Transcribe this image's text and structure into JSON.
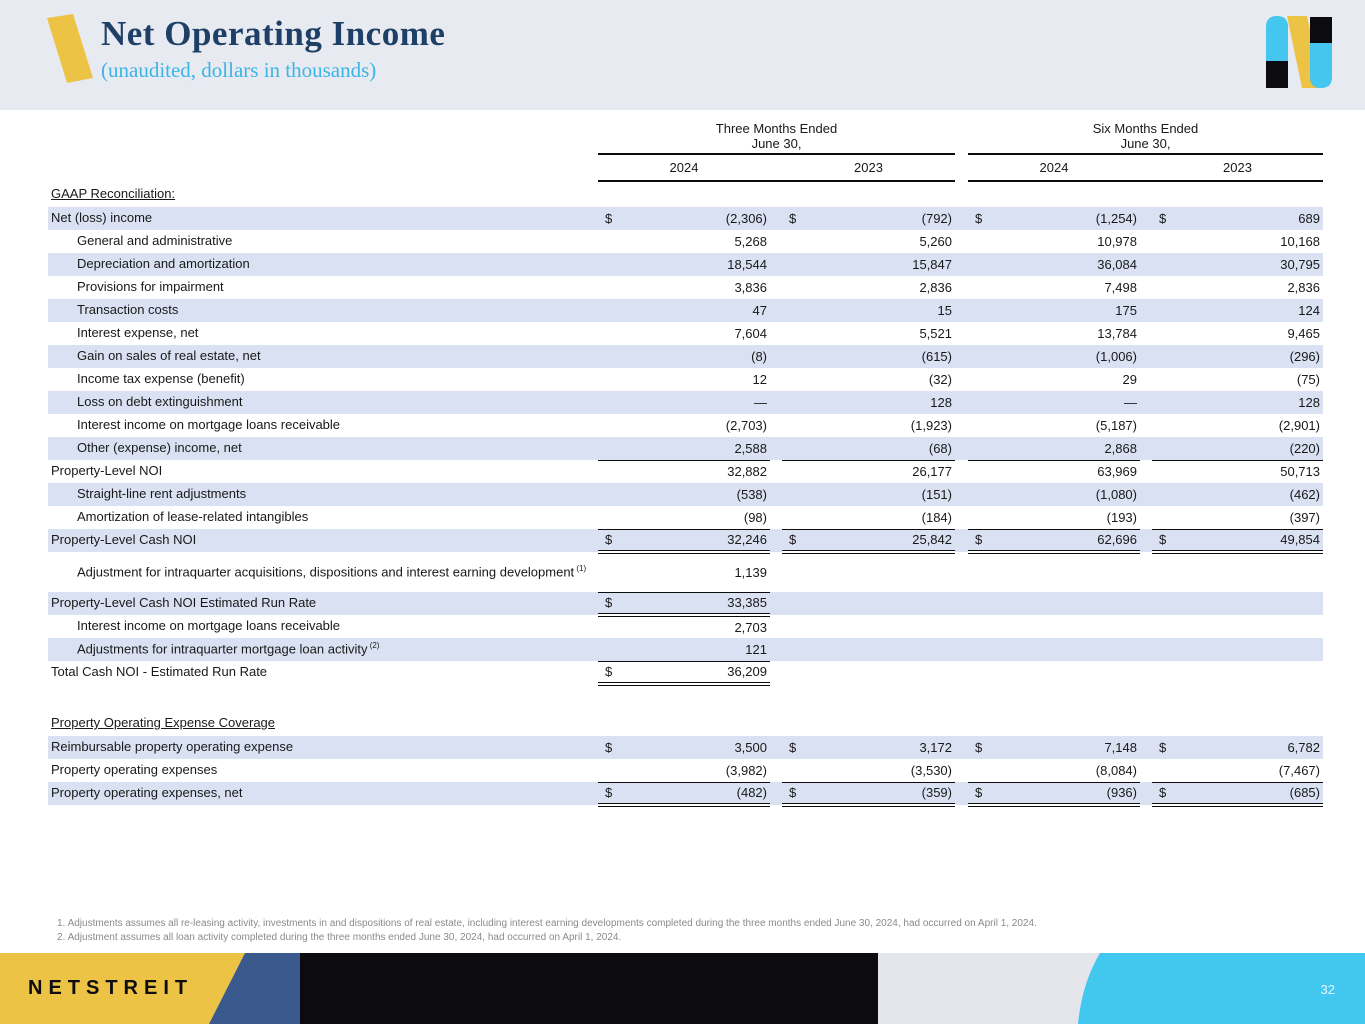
{
  "header": {
    "title": "Net Operating Income",
    "subtitle": "(unaudited, dollars in thousands)"
  },
  "colors": {
    "accent_yellow": "#ecc345",
    "title_navy": "#1f4066",
    "subtitle_blue": "#3ab5e5",
    "row_shade": "#d9e1f2",
    "header_band": "#e8eaf2",
    "footer_steel_blue": "#3a5a8e",
    "footer_black": "#0b0b10",
    "footer_gray": "#e4e6eb",
    "footer_cyan": "#42c7ef",
    "logo_cyan": "#45c6ee"
  },
  "table": {
    "groups": [
      {
        "line1": "Three Months Ended",
        "line2": "June 30,",
        "years": [
          "2024",
          "2023"
        ]
      },
      {
        "line1": "Six Months Ended",
        "line2": "June 30,",
        "years": [
          "2024",
          "2023"
        ]
      }
    ],
    "sections": [
      {
        "heading": "GAAP Reconciliation:",
        "rows": [
          {
            "label": "Net (loss) income",
            "indent": 0,
            "shade": true,
            "dollar": "all",
            "border": "none",
            "vals": [
              "(2,306)",
              "(792)",
              "(1,254)",
              "689"
            ]
          },
          {
            "label": "General and administrative",
            "indent": 1,
            "shade": false,
            "dollar": "none",
            "border": "none",
            "vals": [
              "5,268",
              "5,260",
              "10,978",
              "10,168"
            ]
          },
          {
            "label": "Depreciation and amortization",
            "indent": 1,
            "shade": true,
            "dollar": "none",
            "border": "none",
            "vals": [
              "18,544",
              "15,847",
              "36,084",
              "30,795"
            ]
          },
          {
            "label": "Provisions for impairment",
            "indent": 1,
            "shade": false,
            "dollar": "none",
            "border": "none",
            "vals": [
              "3,836",
              "2,836",
              "7,498",
              "2,836"
            ]
          },
          {
            "label": "Transaction costs",
            "indent": 1,
            "shade": true,
            "dollar": "none",
            "border": "none",
            "vals": [
              "47",
              "15",
              "175",
              "124"
            ]
          },
          {
            "label": "Interest expense, net",
            "indent": 1,
            "shade": false,
            "dollar": "none",
            "border": "none",
            "vals": [
              "7,604",
              "5,521",
              "13,784",
              "9,465"
            ]
          },
          {
            "label": "Gain on sales of real estate, net",
            "indent": 1,
            "shade": true,
            "dollar": "none",
            "border": "none",
            "vals": [
              "(8)",
              "(615)",
              "(1,006)",
              "(296)"
            ]
          },
          {
            "label": "Income tax expense (benefit)",
            "indent": 1,
            "shade": false,
            "dollar": "none",
            "border": "none",
            "vals": [
              "12",
              "(32)",
              "29",
              "(75)"
            ]
          },
          {
            "label": "Loss on debt extinguishment",
            "indent": 1,
            "shade": true,
            "dollar": "none",
            "border": "none",
            "vals": [
              "—",
              "128",
              "—",
              "128"
            ]
          },
          {
            "label": "Interest income on mortgage loans receivable",
            "indent": 1,
            "shade": false,
            "dollar": "none",
            "border": "none",
            "vals": [
              "(2,703)",
              "(1,923)",
              "(5,187)",
              "(2,901)"
            ]
          },
          {
            "label": "Other (expense) income, net",
            "indent": 1,
            "shade": true,
            "dollar": "none",
            "border": "single",
            "vals": [
              "2,588",
              "(68)",
              "2,868",
              "(220)"
            ]
          },
          {
            "label": "Property-Level NOI",
            "indent": 0,
            "shade": false,
            "dollar": "none",
            "border": "none",
            "vals": [
              "32,882",
              "26,177",
              "63,969",
              "50,713"
            ]
          },
          {
            "label": "Straight-line rent adjustments",
            "indent": 1,
            "shade": true,
            "dollar": "none",
            "border": "none",
            "vals": [
              "(538)",
              "(151)",
              "(1,080)",
              "(462)"
            ]
          },
          {
            "label": "Amortization of lease-related intangibles",
            "indent": 1,
            "shade": false,
            "dollar": "none",
            "border": "single",
            "vals": [
              "(98)",
              "(184)",
              "(193)",
              "(397)"
            ]
          },
          {
            "label": "Property-Level Cash NOI",
            "indent": 0,
            "shade": true,
            "dollar": "all",
            "border": "double",
            "vals": [
              "32,246",
              "25,842",
              "62,696",
              "49,854"
            ]
          },
          {
            "label": "Adjustment for intraquarter acquisitions, dispositions and interest earning development",
            "sup": "(1)",
            "indent": 1,
            "shade": false,
            "dollar": "none",
            "border": "single",
            "cols": 1,
            "tall": true,
            "vals": [
              "1,139"
            ]
          },
          {
            "label": "Property-Level Cash NOI Estimated Run Rate",
            "indent": 0,
            "shade": true,
            "dollar": "first",
            "border": "double",
            "cols": 1,
            "vals": [
              "33,385"
            ]
          },
          {
            "label": "Interest income on mortgage loans receivable",
            "indent": 1,
            "shade": false,
            "dollar": "none",
            "border": "none",
            "cols": 1,
            "vals": [
              "2,703"
            ]
          },
          {
            "label": "Adjustments for intraquarter mortgage loan activity",
            "sup": "(2)",
            "indent": 1,
            "shade": true,
            "dollar": "none",
            "border": "single",
            "cols": 1,
            "vals": [
              "121"
            ]
          },
          {
            "label": "Total Cash NOI - Estimated Run Rate",
            "indent": 0,
            "shade": false,
            "dollar": "first",
            "border": "double",
            "cols": 1,
            "vals": [
              "36,209"
            ]
          }
        ]
      },
      {
        "heading": "Property Operating Expense Coverage",
        "rows": [
          {
            "label": "Reimbursable property operating expense",
            "indent": 0,
            "shade": true,
            "dollar": "all",
            "border": "none",
            "vals": [
              "3,500",
              "3,172",
              "7,148",
              "6,782"
            ]
          },
          {
            "label": "Property operating expenses",
            "indent": 0,
            "shade": false,
            "dollar": "none",
            "border": "single",
            "vals": [
              "(3,982)",
              "(3,530)",
              "(8,084)",
              "(7,467)"
            ]
          },
          {
            "label": "Property operating expenses, net",
            "indent": 0,
            "shade": true,
            "dollar": "all",
            "border": "double",
            "vals": [
              "(482)",
              "(359)",
              "(936)",
              "(685)"
            ]
          }
        ]
      }
    ]
  },
  "footnotes": [
    "1. Adjustments assumes all re-leasing activity, investments in and dispositions of real estate, including interest earning developments completed during the three months ended June 30, 2024, had occurred on April 1, 2024.",
    "2. Adjustment assumes all loan activity completed during the three months ended June 30, 2024, had occurred on April 1, 2024."
  ],
  "footer": {
    "brand": "NETSTREIT",
    "page_number": "32"
  }
}
